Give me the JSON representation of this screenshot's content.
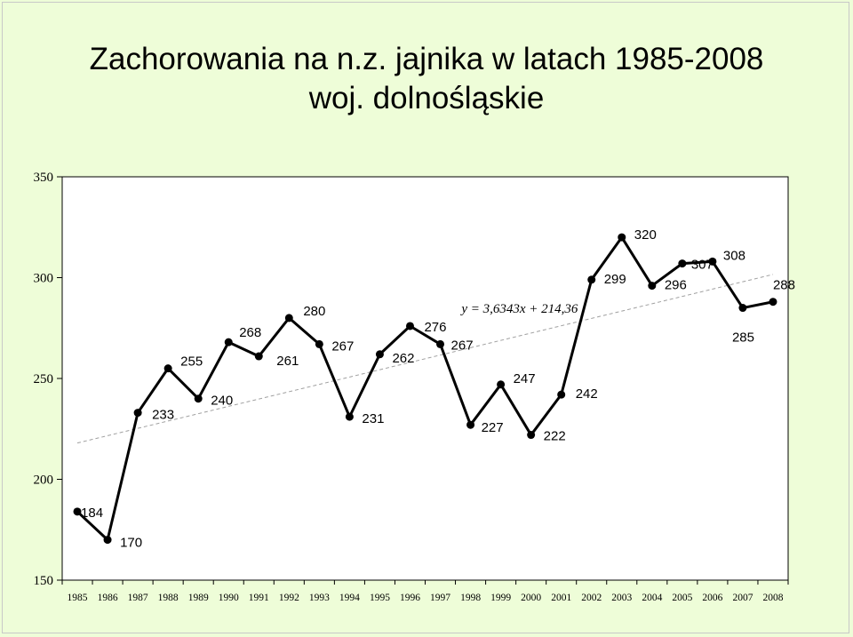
{
  "chart_data": {
    "type": "line",
    "title": "Zachorowania na n.z. jajnika w latach 1985-2008",
    "subtitle": "woj. dolnośląskie",
    "categories": [
      "1985",
      "1986",
      "1987",
      "1988",
      "1989",
      "1990",
      "1991",
      "1992",
      "1993",
      "1994",
      "1995",
      "1996",
      "1997",
      "1998",
      "1999",
      "2000",
      "2001",
      "2002",
      "2003",
      "2004",
      "2005",
      "2006",
      "2007",
      "2008"
    ],
    "values": [
      184,
      170,
      233,
      255,
      240,
      268,
      261,
      280,
      267,
      231,
      262,
      276,
      267,
      227,
      247,
      222,
      242,
      299,
      320,
      296,
      307,
      308,
      285,
      288
    ],
    "ylim": [
      150,
      350
    ],
    "yticks": [
      "150",
      "200",
      "250",
      "300",
      "350"
    ],
    "trendline": {
      "equation": "y = 3,6343x + 214,36",
      "slope": 3.6343,
      "intercept": 214.36,
      "style": "dashed"
    },
    "colors": {
      "line": "#000000",
      "trend": "#a0a0a0",
      "plot_background": "#ffffff",
      "background": "#eefdd8"
    },
    "grid": false,
    "legend": "none"
  }
}
